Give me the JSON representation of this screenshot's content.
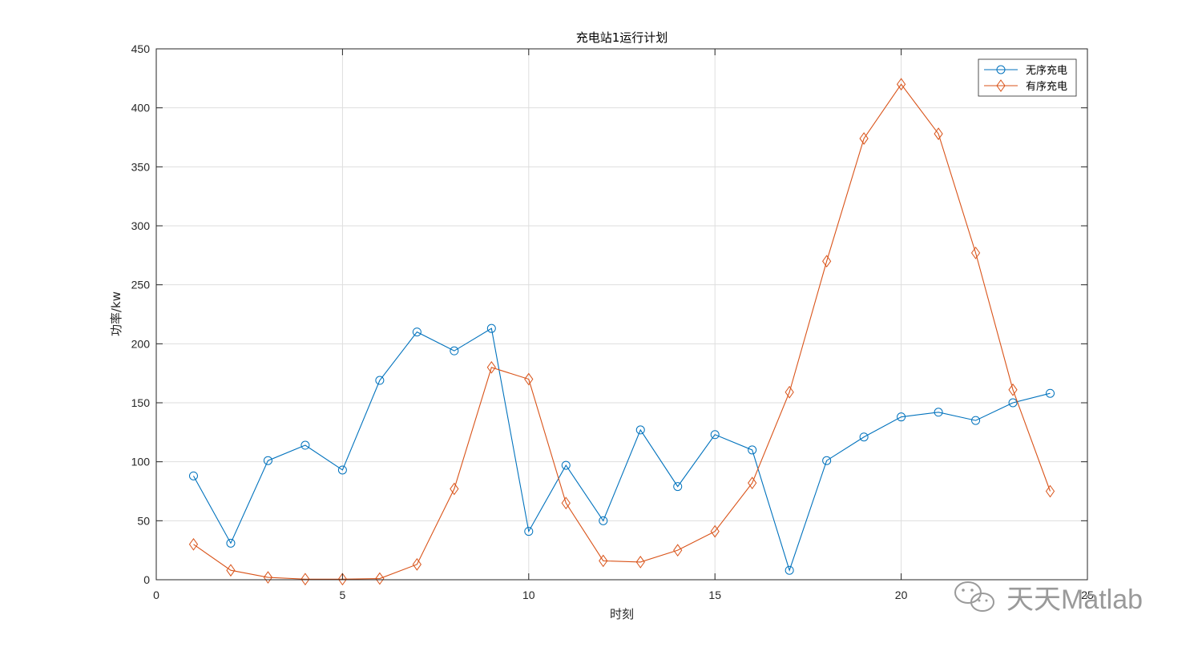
{
  "chart_data": {
    "type": "line",
    "title": "充电站1运行计划",
    "xlabel": "时刻",
    "ylabel": "功率/kw",
    "xlim": [
      0,
      25
    ],
    "ylim": [
      0,
      450
    ],
    "xticks": [
      0,
      5,
      10,
      15,
      20,
      25
    ],
    "xtick_labels": [
      "0",
      "5",
      "10",
      "15",
      "20",
      "25"
    ],
    "yticks": [
      0,
      50,
      100,
      150,
      200,
      250,
      300,
      350,
      400,
      450
    ],
    "ytick_labels": [
      "0",
      "50",
      "100",
      "150",
      "200",
      "250",
      "300",
      "350",
      "400",
      "450"
    ],
    "grid": true,
    "legend_position": "top-right",
    "x": [
      1,
      2,
      3,
      4,
      5,
      6,
      7,
      8,
      9,
      10,
      11,
      12,
      13,
      14,
      15,
      16,
      17,
      18,
      19,
      20,
      21,
      22,
      23,
      24
    ],
    "series": [
      {
        "name": "无序充电",
        "color": "#0072BD",
        "marker": "circle",
        "values": [
          88,
          31,
          101,
          114,
          93,
          169,
          210,
          194,
          213,
          41,
          97,
          50,
          127,
          79,
          123,
          110,
          8,
          101,
          121,
          138,
          142,
          135,
          150,
          158
        ]
      },
      {
        "name": "有序充电",
        "color": "#D95319",
        "marker": "diamond",
        "values": [
          30,
          8,
          2,
          0.5,
          0.5,
          1,
          13,
          77,
          180,
          170,
          65,
          16,
          15,
          25,
          41,
          82,
          159,
          270,
          374,
          420,
          378,
          277,
          161,
          75
        ]
      }
    ]
  },
  "watermark": {
    "text": "天天Matlab",
    "icon": "wechat-icon"
  }
}
